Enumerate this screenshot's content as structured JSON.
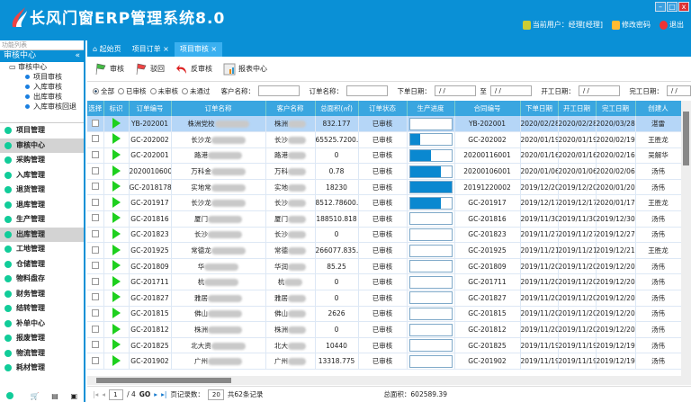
{
  "app": {
    "title": "长风门窗ERP管理系统8.0",
    "current_user": "当前用户：经理[经理]",
    "change_password": "修改密码",
    "logout": "退出",
    "accent": "#0a90d6"
  },
  "left": {
    "panel_title": "功能列表",
    "section": "审核中心",
    "tree": [
      "审核中心",
      "项目审核",
      "入库审核",
      "出库审核",
      "入库审核回退"
    ],
    "menu": [
      {
        "label": "项目管理",
        "icon": "book-icon"
      },
      {
        "label": "审核中心",
        "icon": "audit-icon",
        "selected": true
      },
      {
        "label": "采购管理",
        "icon": "cart-icon"
      },
      {
        "label": "入库管理",
        "icon": "inbound-icon"
      },
      {
        "label": "退货管理",
        "icon": "return-icon"
      },
      {
        "label": "退库管理",
        "icon": "dot-icon"
      },
      {
        "label": "生产管理",
        "icon": "production-icon"
      },
      {
        "label": "出库管理",
        "icon": "outbound-icon",
        "selected": true
      },
      {
        "label": "工地管理",
        "icon": "dot-icon"
      },
      {
        "label": "仓储管理",
        "icon": "warehouse-icon"
      },
      {
        "label": "物料盘存",
        "icon": "dot-icon"
      },
      {
        "label": "财务管理",
        "icon": "finance-icon"
      },
      {
        "label": "结转管理",
        "icon": "dot-icon"
      },
      {
        "label": "补单中心",
        "icon": "dot-icon"
      },
      {
        "label": "报废管理",
        "icon": "dot-icon"
      },
      {
        "label": "物流管理",
        "icon": "dot-icon"
      },
      {
        "label": "耗材管理",
        "icon": "dot-icon"
      }
    ]
  },
  "tabs": [
    {
      "label": "起始页"
    },
    {
      "label": "项目订单"
    },
    {
      "label": "项目审核",
      "active": true
    }
  ],
  "toolbar": {
    "approve": "审核",
    "reject": "驳回",
    "unapprove": "反审核",
    "report": "报表中心"
  },
  "filter": {
    "radios": [
      "全部",
      "已审核",
      "未审核",
      "未通过"
    ],
    "customer_label": "客户名称：",
    "order_label": "订单名称：",
    "order_date_label": "下单日期：",
    "to_label": "至",
    "start_date_label": "开工日期：",
    "finish_date_label": "完工日期：",
    "date_placeholder": "/ /"
  },
  "columns": [
    "选择",
    "标识",
    "订单编号",
    "订单名称",
    "客户名称",
    "总面积(㎡)",
    "订单状态",
    "生产进度",
    "合同编号",
    "下单日期",
    "开工日期",
    "完工日期",
    "创建人"
  ],
  "rows": [
    {
      "no": "YB-202001",
      "name": "株洲党校",
      "cust": "株洲",
      "area": "832.177",
      "status": "已审核",
      "progress": 0,
      "contract": "YB-202001",
      "d1": "2020/02/28",
      "d2": "2020/02/28",
      "d3": "2020/03/28",
      "by": "湛雷"
    },
    {
      "no": "GC-202002",
      "name": "长沙龙",
      "cust": "长沙",
      "area": "65525.7200...",
      "status": "已审核",
      "progress": 0.25,
      "contract": "GC-202002",
      "d1": "2020/01/19",
      "d2": "2020/01/19",
      "d3": "2020/02/19",
      "by": "王胜龙"
    },
    {
      "no": "GC-202001",
      "name": "路港",
      "cust": "路港",
      "area": "0",
      "status": "已审核",
      "progress": 0.5,
      "contract": "20200116001",
      "d1": "2020/01/16",
      "d2": "2020/01/16",
      "d3": "2020/02/16",
      "by": "吴解华"
    },
    {
      "no": "20200106001",
      "name": "万科金",
      "cust": "万科",
      "area": "0.78",
      "status": "已审核",
      "progress": 0.75,
      "contract": "20200106001",
      "d1": "2020/01/06",
      "d2": "2020/01/06",
      "d3": "2020/02/06",
      "by": "汤伟"
    },
    {
      "no": "GC-2018178",
      "name": "实地常",
      "cust": "实地",
      "area": "18230",
      "status": "已审核",
      "progress": 1,
      "contract": "20191220002",
      "d1": "2019/12/20",
      "d2": "2019/12/20",
      "d3": "2020/01/20",
      "by": "汤伟"
    },
    {
      "no": "GC-201917",
      "name": "长沙龙",
      "cust": "长沙",
      "area": "8512.78600...",
      "status": "已审核",
      "progress": 0.75,
      "contract": "GC-201917",
      "d1": "2019/12/17",
      "d2": "2019/12/17",
      "d3": "2020/01/17",
      "by": "王胜龙"
    },
    {
      "no": "GC-201816",
      "name": "厦门",
      "cust": "厦门",
      "area": "188510.818",
      "status": "已审核",
      "progress": 0,
      "contract": "GC-201816",
      "d1": "2019/11/30",
      "d2": "2019/11/30",
      "d3": "2019/12/30",
      "by": "汤伟"
    },
    {
      "no": "GC-201823",
      "name": "长沙",
      "cust": "长沙",
      "area": "0",
      "status": "已审核",
      "progress": 0,
      "contract": "GC-201823",
      "d1": "2019/11/27",
      "d2": "2019/11/27",
      "d3": "2019/12/27",
      "by": "汤伟"
    },
    {
      "no": "GC-201925",
      "name": "常德龙",
      "cust": "常德",
      "area": "266077.835...",
      "status": "已审核",
      "progress": 0,
      "contract": "GC-201925",
      "d1": "2019/11/21",
      "d2": "2019/11/21",
      "d3": "2019/12/21",
      "by": "王胜龙"
    },
    {
      "no": "GC-201809",
      "name": "华",
      "cust": "华润",
      "area": "85.25",
      "status": "已审核",
      "progress": 0,
      "contract": "GC-201809",
      "d1": "2019/11/20",
      "d2": "2019/11/20",
      "d3": "2019/12/20",
      "by": "汤伟"
    },
    {
      "no": "GC-201711",
      "name": "杭",
      "cust": "杭",
      "area": "0",
      "status": "已审核",
      "progress": 0,
      "contract": "GC-201711",
      "d1": "2019/11/20",
      "d2": "2019/11/20",
      "d3": "2019/12/20",
      "by": "汤伟"
    },
    {
      "no": "GC-201827",
      "name": "雅居",
      "cust": "雅居",
      "area": "0",
      "status": "已审核",
      "progress": 0,
      "contract": "GC-201827",
      "d1": "2019/11/20",
      "d2": "2019/11/20",
      "d3": "2019/12/20",
      "by": "汤伟"
    },
    {
      "no": "GC-201815",
      "name": "佛山",
      "cust": "佛山",
      "area": "2626",
      "status": "已审核",
      "progress": 0,
      "contract": "GC-201815",
      "d1": "2019/11/20",
      "d2": "2019/11/20",
      "d3": "2019/12/20",
      "by": "汤伟"
    },
    {
      "no": "GC-201812",
      "name": "株洲",
      "cust": "株洲",
      "area": "0",
      "status": "已审核",
      "progress": 0,
      "contract": "GC-201812",
      "d1": "2019/11/20",
      "d2": "2019/11/20",
      "d3": "2019/12/20",
      "by": "汤伟"
    },
    {
      "no": "GC-201825",
      "name": "北大资",
      "cust": "北大",
      "area": "10440",
      "status": "已审核",
      "progress": 0,
      "contract": "GC-201825",
      "d1": "2019/11/19",
      "d2": "2019/11/19",
      "d3": "2019/12/19",
      "by": "汤伟"
    },
    {
      "no": "GC-201902",
      "name": "广州",
      "cust": "广州",
      "area": "13318.775",
      "status": "已审核",
      "progress": 0,
      "contract": "GC-201902",
      "d1": "2019/11/19",
      "d2": "2019/11/19",
      "d3": "2019/12/19",
      "by": "汤伟"
    }
  ],
  "pager": {
    "page": "1",
    "total_pages": "/ 4",
    "go": "GO",
    "page_size_label": "页记录数：",
    "page_size": "20",
    "total_records": "共62条记录",
    "total_area": "总面积：602589.39"
  }
}
